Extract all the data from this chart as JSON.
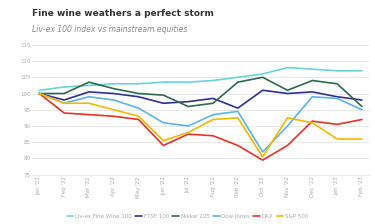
{
  "title": "Fine wine weathers a perfect storm",
  "subtitle": "Liv-ex 100 index vs mainstream equities",
  "x_labels": [
    "Jan '22",
    "Feb '22",
    "Mar '22",
    "Apr '22",
    "May '22",
    "Jun '22",
    "Jul '22",
    "Aug '22",
    "Sep '22",
    "Oct '22",
    "Nov '22",
    "Dec '22",
    "Jan '23",
    "Feb '23"
  ],
  "ylim": [
    75,
    115
  ],
  "yticks": [
    75,
    80,
    85,
    90,
    95,
    100,
    105,
    110,
    115
  ],
  "series": {
    "Liv-ex Fine Wine 100": {
      "color": "#6dd0e0",
      "linewidth": 1.2,
      "data": [
        101,
        102,
        102.5,
        103,
        103,
        103.5,
        103.5,
        104,
        105,
        106,
        108,
        107.5,
        107,
        107
      ]
    },
    "FTSE 100": {
      "color": "#2e3191",
      "linewidth": 1.2,
      "data": [
        100,
        98,
        100.5,
        100,
        99,
        97,
        97.5,
        98.5,
        95.5,
        101,
        100,
        100.5,
        99,
        98
      ]
    },
    "Nikkei 225": {
      "color": "#2d6a4f",
      "linewidth": 1.2,
      "data": [
        100,
        100,
        103.5,
        101.5,
        100,
        99.5,
        96,
        97,
        103.5,
        105,
        101,
        104,
        103,
        96
      ]
    },
    "Dow Jones": {
      "color": "#5ab4e8",
      "linewidth": 1.2,
      "data": [
        100,
        97,
        99,
        98,
        95.5,
        91,
        90,
        93.5,
        94.5,
        82,
        90,
        99,
        98.5,
        95
      ]
    },
    "DAX": {
      "color": "#e63329",
      "linewidth": 1.2,
      "data": [
        100,
        94,
        93.5,
        93,
        92,
        84,
        87.5,
        87,
        84,
        79.5,
        84,
        91.5,
        90.5,
        92
      ]
    },
    "S&P 500": {
      "color": "#f5b800",
      "linewidth": 1.2,
      "data": [
        100,
        97,
        97,
        95,
        93,
        85.5,
        88,
        92,
        92.5,
        80.5,
        92.5,
        91,
        86,
        86
      ]
    }
  },
  "background_color": "#ffffff",
  "grid_color": "#e0e0e0",
  "title_fontsize": 6.5,
  "subtitle_fontsize": 5.5,
  "tick_fontsize": 4,
  "legend_fontsize": 4
}
